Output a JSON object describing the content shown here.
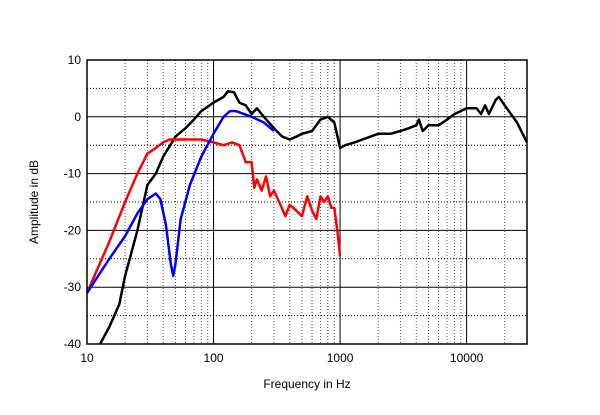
{
  "chart_data": {
    "type": "line",
    "title": "",
    "xlabel": "Frequency in Hz",
    "ylabel": "Amplitude in dB",
    "xscale": "log",
    "xlim": [
      10,
      30000
    ],
    "ylim": [
      -40,
      10
    ],
    "grid": true,
    "xticks": [
      {
        "v": 10,
        "label": "10"
      },
      {
        "v": 100,
        "label": "100"
      },
      {
        "v": 1000,
        "label": "1000"
      },
      {
        "v": 10000,
        "label": "10000"
      }
    ],
    "yticks": [
      {
        "v": 10,
        "label": "10"
      },
      {
        "v": 0,
        "label": "0"
      },
      {
        "v": -10,
        "label": "-10"
      },
      {
        "v": -20,
        "label": "-20"
      },
      {
        "v": -30,
        "label": "-30"
      },
      {
        "v": -40,
        "label": "-40"
      }
    ],
    "series": [
      {
        "name": "black",
        "color": "#000000",
        "points": [
          [
            12.7,
            -40
          ],
          [
            15,
            -37
          ],
          [
            18,
            -33
          ],
          [
            20,
            -28
          ],
          [
            25,
            -20
          ],
          [
            30,
            -12
          ],
          [
            35,
            -10
          ],
          [
            40,
            -7
          ],
          [
            50,
            -3.5
          ],
          [
            60,
            -2
          ],
          [
            70,
            -0.5
          ],
          [
            80,
            1
          ],
          [
            100,
            2.5
          ],
          [
            120,
            3.5
          ],
          [
            130,
            4.5
          ],
          [
            145,
            4.3
          ],
          [
            160,
            2.5
          ],
          [
            180,
            2
          ],
          [
            200,
            0.5
          ],
          [
            220,
            1.5
          ],
          [
            250,
            0
          ],
          [
            300,
            -2
          ],
          [
            350,
            -3.5
          ],
          [
            400,
            -4
          ],
          [
            450,
            -3.5
          ],
          [
            500,
            -3
          ],
          [
            600,
            -2.5
          ],
          [
            700,
            -0.5
          ],
          [
            800,
            0
          ],
          [
            900,
            -1
          ],
          [
            1000,
            -5.5
          ],
          [
            1100,
            -5
          ],
          [
            1300,
            -4.5
          ],
          [
            1500,
            -4
          ],
          [
            2000,
            -3
          ],
          [
            2500,
            -3
          ],
          [
            3000,
            -2.5
          ],
          [
            3500,
            -2
          ],
          [
            4000,
            -1.5
          ],
          [
            4200,
            -0.5
          ],
          [
            4500,
            -2.5
          ],
          [
            5000,
            -1.5
          ],
          [
            6000,
            -1.5
          ],
          [
            7000,
            -0.5
          ],
          [
            8000,
            0.5
          ],
          [
            9000,
            1
          ],
          [
            10000,
            1.5
          ],
          [
            12000,
            1.5
          ],
          [
            13000,
            0.5
          ],
          [
            14000,
            2
          ],
          [
            15000,
            0.5
          ],
          [
            17000,
            3
          ],
          [
            18000,
            3.5
          ],
          [
            20000,
            2
          ],
          [
            25000,
            -1
          ],
          [
            30000,
            -4.5
          ]
        ]
      },
      {
        "name": "red",
        "color": "#ff0000",
        "points": [
          [
            10,
            -31
          ],
          [
            15,
            -22
          ],
          [
            20,
            -15
          ],
          [
            25,
            -10
          ],
          [
            30,
            -6.5
          ],
          [
            35,
            -5.5
          ],
          [
            40,
            -4.5
          ],
          [
            45,
            -4
          ],
          [
            60,
            -4
          ],
          [
            80,
            -4
          ],
          [
            100,
            -4.5
          ],
          [
            120,
            -5
          ],
          [
            140,
            -4.5
          ],
          [
            160,
            -5
          ],
          [
            180,
            -8
          ],
          [
            200,
            -8
          ],
          [
            210,
            -12.5
          ],
          [
            220,
            -11
          ],
          [
            240,
            -13
          ],
          [
            260,
            -10.5
          ],
          [
            280,
            -14
          ],
          [
            300,
            -13
          ],
          [
            330,
            -15
          ],
          [
            370,
            -17.5
          ],
          [
            400,
            -15.5
          ],
          [
            450,
            -16.5
          ],
          [
            500,
            -17.5
          ],
          [
            550,
            -14
          ],
          [
            600,
            -16.5
          ],
          [
            650,
            -18
          ],
          [
            700,
            -14
          ],
          [
            750,
            -15
          ],
          [
            800,
            -14
          ],
          [
            850,
            -16
          ],
          [
            900,
            -16
          ],
          [
            950,
            -20
          ],
          [
            1000,
            -24.5
          ]
        ]
      },
      {
        "name": "blue",
        "color": "#0000ff",
        "points": [
          [
            10,
            -31
          ],
          [
            15,
            -25
          ],
          [
            20,
            -21
          ],
          [
            25,
            -17
          ],
          [
            30,
            -14.5
          ],
          [
            35,
            -13.5
          ],
          [
            38,
            -14.5
          ],
          [
            42,
            -19
          ],
          [
            46,
            -26
          ],
          [
            48,
            -28
          ],
          [
            50,
            -26
          ],
          [
            55,
            -18
          ],
          [
            65,
            -12
          ],
          [
            80,
            -7
          ],
          [
            100,
            -3
          ],
          [
            120,
            0
          ],
          [
            135,
            1
          ],
          [
            150,
            1
          ],
          [
            200,
            0
          ],
          [
            250,
            -1
          ],
          [
            300,
            -2.5
          ]
        ]
      }
    ]
  }
}
